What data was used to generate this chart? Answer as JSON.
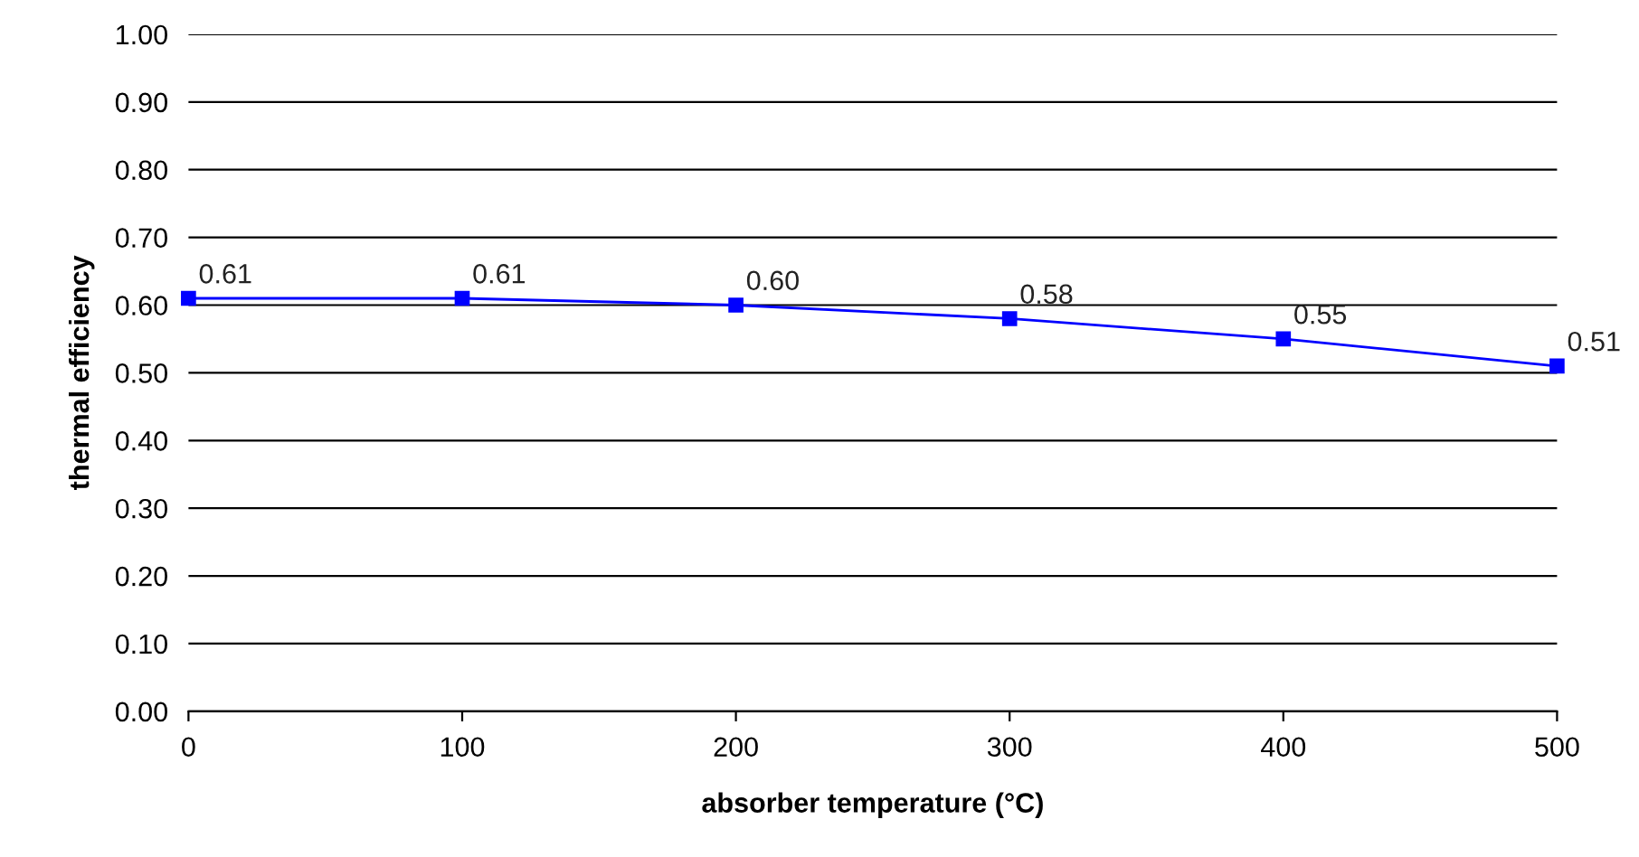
{
  "chart_data": {
    "type": "line",
    "xlabel": "absorber temperature (°C)",
    "ylabel": "thermal efficiency",
    "x": [
      0,
      100,
      200,
      300,
      400,
      500
    ],
    "series": [
      {
        "color": "#0000ff",
        "values": [
          0.61,
          0.61,
          0.6,
          0.58,
          0.55,
          0.51
        ],
        "value_labels": [
          "0.61",
          "0.61",
          "0.60",
          "0.58",
          "0.55",
          "0.51"
        ]
      }
    ],
    "xlim": [
      0,
      500
    ],
    "xticks": [
      0,
      100,
      200,
      300,
      400,
      500
    ],
    "ylim": [
      0,
      1
    ],
    "yticks": [
      {
        "value": 0,
        "label": "0.00"
      },
      {
        "value": 0.1,
        "label": "0.10"
      },
      {
        "value": 0.2,
        "label": "0.20"
      },
      {
        "value": 0.3,
        "label": "0.30"
      },
      {
        "value": 0.4,
        "label": "0.40"
      },
      {
        "value": 0.5,
        "label": "0.50"
      },
      {
        "value": 0.6,
        "label": "0.60"
      },
      {
        "value": 0.7,
        "label": "0.70"
      },
      {
        "value": 0.8,
        "label": "0.80"
      },
      {
        "value": 0.9,
        "label": "0.90"
      },
      {
        "value": 1,
        "label": "1.00"
      }
    ],
    "grid": "y",
    "marker": "square",
    "line_style": "solid",
    "legend": false
  }
}
